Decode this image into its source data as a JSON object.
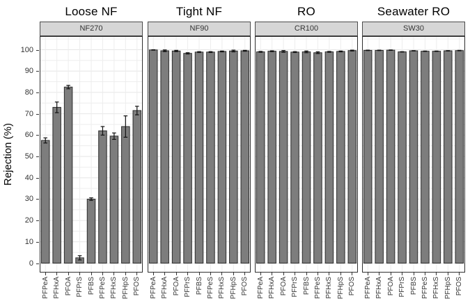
{
  "chart_data": {
    "type": "bar",
    "title": "",
    "xlabel": "",
    "ylabel": "Rejection (%)",
    "categories": [
      "PFPeA",
      "PFHxA",
      "PFOA",
      "PFPrS",
      "PFBS",
      "PFPeS",
      "PFHxS",
      "PFHpS",
      "PFOS"
    ],
    "y_ticks": [
      0,
      10,
      20,
      30,
      40,
      50,
      60,
      70,
      80,
      90,
      100
    ],
    "ylim": [
      0,
      105
    ],
    "grid": "on",
    "legend": "none",
    "facets": [
      {
        "group_title": "Loose NF",
        "membrane": "NF270",
        "values": [
          57.5,
          73.0,
          82.5,
          2.5,
          30.0,
          62.0,
          59.5,
          64.0,
          71.5
        ],
        "errors": [
          1.2,
          2.5,
          0.8,
          1.0,
          0.6,
          2.0,
          1.5,
          5.0,
          2.0
        ]
      },
      {
        "group_title": "Tight NF",
        "membrane": "NF90",
        "values": [
          99.9,
          99.5,
          99.4,
          98.3,
          98.9,
          98.9,
          99.2,
          99.4,
          99.5
        ],
        "errors": [
          0.1,
          0.4,
          0.3,
          0.3,
          0.2,
          0.2,
          0.2,
          0.4,
          0.2
        ]
      },
      {
        "group_title": "RO",
        "membrane": "CR100",
        "values": [
          99.0,
          99.3,
          99.2,
          98.9,
          99.0,
          98.6,
          99.0,
          99.2,
          99.6
        ],
        "errors": [
          0.2,
          0.2,
          0.4,
          0.2,
          0.4,
          0.4,
          0.2,
          0.2,
          0.2
        ]
      },
      {
        "group_title": "Seawater RO",
        "membrane": "SW30",
        "values": [
          99.7,
          99.7,
          99.8,
          99.0,
          99.5,
          99.3,
          99.3,
          99.5,
          99.6
        ],
        "errors": [
          0.1,
          0.1,
          0.1,
          0.1,
          0.1,
          0.1,
          0.1,
          0.1,
          0.1
        ]
      }
    ],
    "colors": {
      "bar_fill": "#7d7d7d",
      "bar_stroke": "#2a2a2a",
      "error_bar": "#111111",
      "panel_border": "#2e2e2e",
      "panel_bg": "#ffffff",
      "gridline_minor": "#ededed",
      "gridline_major": "#e6e6e6",
      "strip_bg": "#d6d6d6",
      "strip_border": "#4a4a4a",
      "axis_text": "#333333",
      "title_text": "#000000"
    }
  }
}
